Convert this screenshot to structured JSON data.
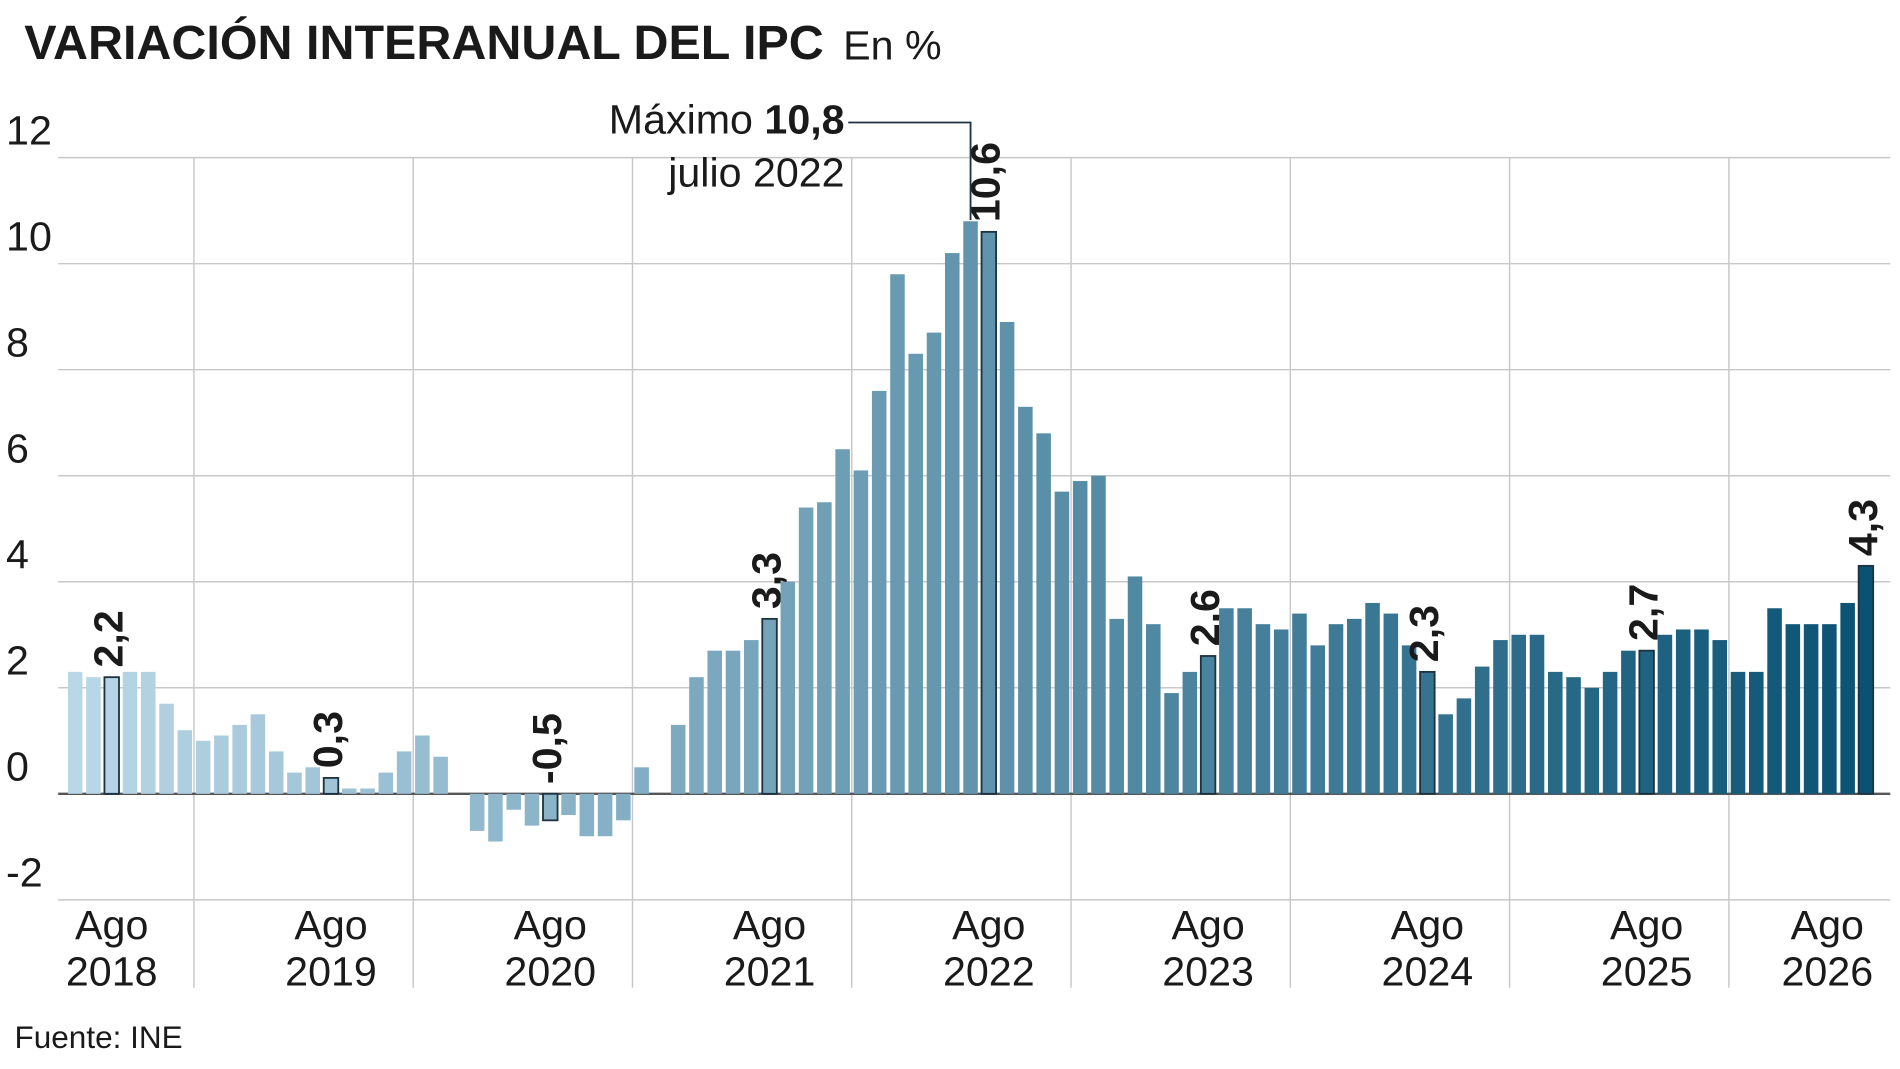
{
  "chart_data": {
    "type": "bar",
    "title": "VARIACIÓN INTERANUAL DEL IPC",
    "subtitle": "En %",
    "source": "Fuente: INE",
    "categories": [
      null,
      null,
      "Ago 2018",
      null,
      null,
      null,
      null,
      null,
      null,
      null,
      null,
      null,
      null,
      null,
      "Ago 2019",
      null,
      null,
      null,
      null,
      null,
      null,
      null,
      null,
      null,
      null,
      null,
      "Ago 2020",
      null,
      null,
      null,
      null,
      null,
      null,
      null,
      null,
      null,
      null,
      null,
      "Ago 2021",
      null,
      null,
      null,
      null,
      null,
      null,
      null,
      null,
      null,
      null,
      null,
      "Ago 2022",
      null,
      null,
      null,
      null,
      null,
      null,
      null,
      null,
      null,
      null,
      null,
      "Ago 2023",
      null,
      null,
      null,
      null,
      null,
      null,
      null,
      null,
      null,
      null,
      null,
      "Ago 2024",
      null,
      null,
      null,
      null,
      null,
      null,
      null,
      null,
      null,
      null,
      null,
      "Ago 2025",
      null,
      null,
      null,
      null,
      null,
      null,
      null,
      null,
      null,
      null,
      null,
      "Ago 2026"
    ],
    "values": [
      2.3,
      2.2,
      2.2,
      2.3,
      2.3,
      1.7,
      1.2,
      1.0,
      1.1,
      1.3,
      1.5,
      0.8,
      0.4,
      0.5,
      0.3,
      0.1,
      0.1,
      0.4,
      0.8,
      1.1,
      0.7,
      0.0,
      -0.7,
      -0.9,
      -0.3,
      -0.6,
      -0.5,
      -0.4,
      -0.8,
      -0.8,
      -0.5,
      0.5,
      0.0,
      1.3,
      2.2,
      2.7,
      2.7,
      2.9,
      3.3,
      4.0,
      5.4,
      5.5,
      6.5,
      6.1,
      7.6,
      9.8,
      8.3,
      8.7,
      10.2,
      10.8,
      10.6,
      8.9,
      7.3,
      6.8,
      5.7,
      5.9,
      6.0,
      3.3,
      4.1,
      3.2,
      1.9,
      2.3,
      2.6,
      3.5,
      3.5,
      3.2,
      3.1,
      3.4,
      2.8,
      3.2,
      3.3,
      3.6,
      3.4,
      2.8,
      2.3,
      1.5,
      1.8,
      2.4,
      2.9,
      3.0,
      3.0,
      2.3,
      2.2,
      2.0,
      2.3,
      2.7,
      2.7,
      3.0,
      3.1,
      3.1,
      2.9,
      2.3,
      2.3,
      3.5,
      3.2,
      3.2,
      3.2,
      3.6,
      4.3
    ],
    "value_labels": [
      null,
      null,
      "2,2",
      null,
      null,
      null,
      null,
      null,
      null,
      null,
      null,
      null,
      null,
      null,
      "0,3",
      null,
      null,
      null,
      null,
      null,
      null,
      null,
      null,
      null,
      null,
      null,
      "-0,5",
      null,
      null,
      null,
      null,
      null,
      null,
      null,
      null,
      null,
      null,
      null,
      "3,3",
      null,
      null,
      null,
      null,
      null,
      null,
      null,
      null,
      null,
      null,
      null,
      "10,6",
      null,
      null,
      null,
      null,
      null,
      null,
      null,
      null,
      null,
      null,
      null,
      "2,6",
      null,
      null,
      null,
      null,
      null,
      null,
      null,
      null,
      null,
      null,
      null,
      "2,3",
      null,
      null,
      null,
      null,
      null,
      null,
      null,
      null,
      null,
      null,
      null,
      "2,7",
      null,
      null,
      null,
      null,
      null,
      null,
      null,
      null,
      null,
      null,
      null,
      "4,3"
    ],
    "gradient": [
      "#b9d7e7",
      "#0a5273"
    ],
    "ylim": [
      -2,
      12
    ],
    "yticks": [
      -2,
      0,
      2,
      4,
      6,
      8,
      10,
      12
    ],
    "grid": true,
    "annotation": {
      "prefix": "Máximo",
      "value_label": "10,8",
      "date": "julio 2022"
    }
  }
}
